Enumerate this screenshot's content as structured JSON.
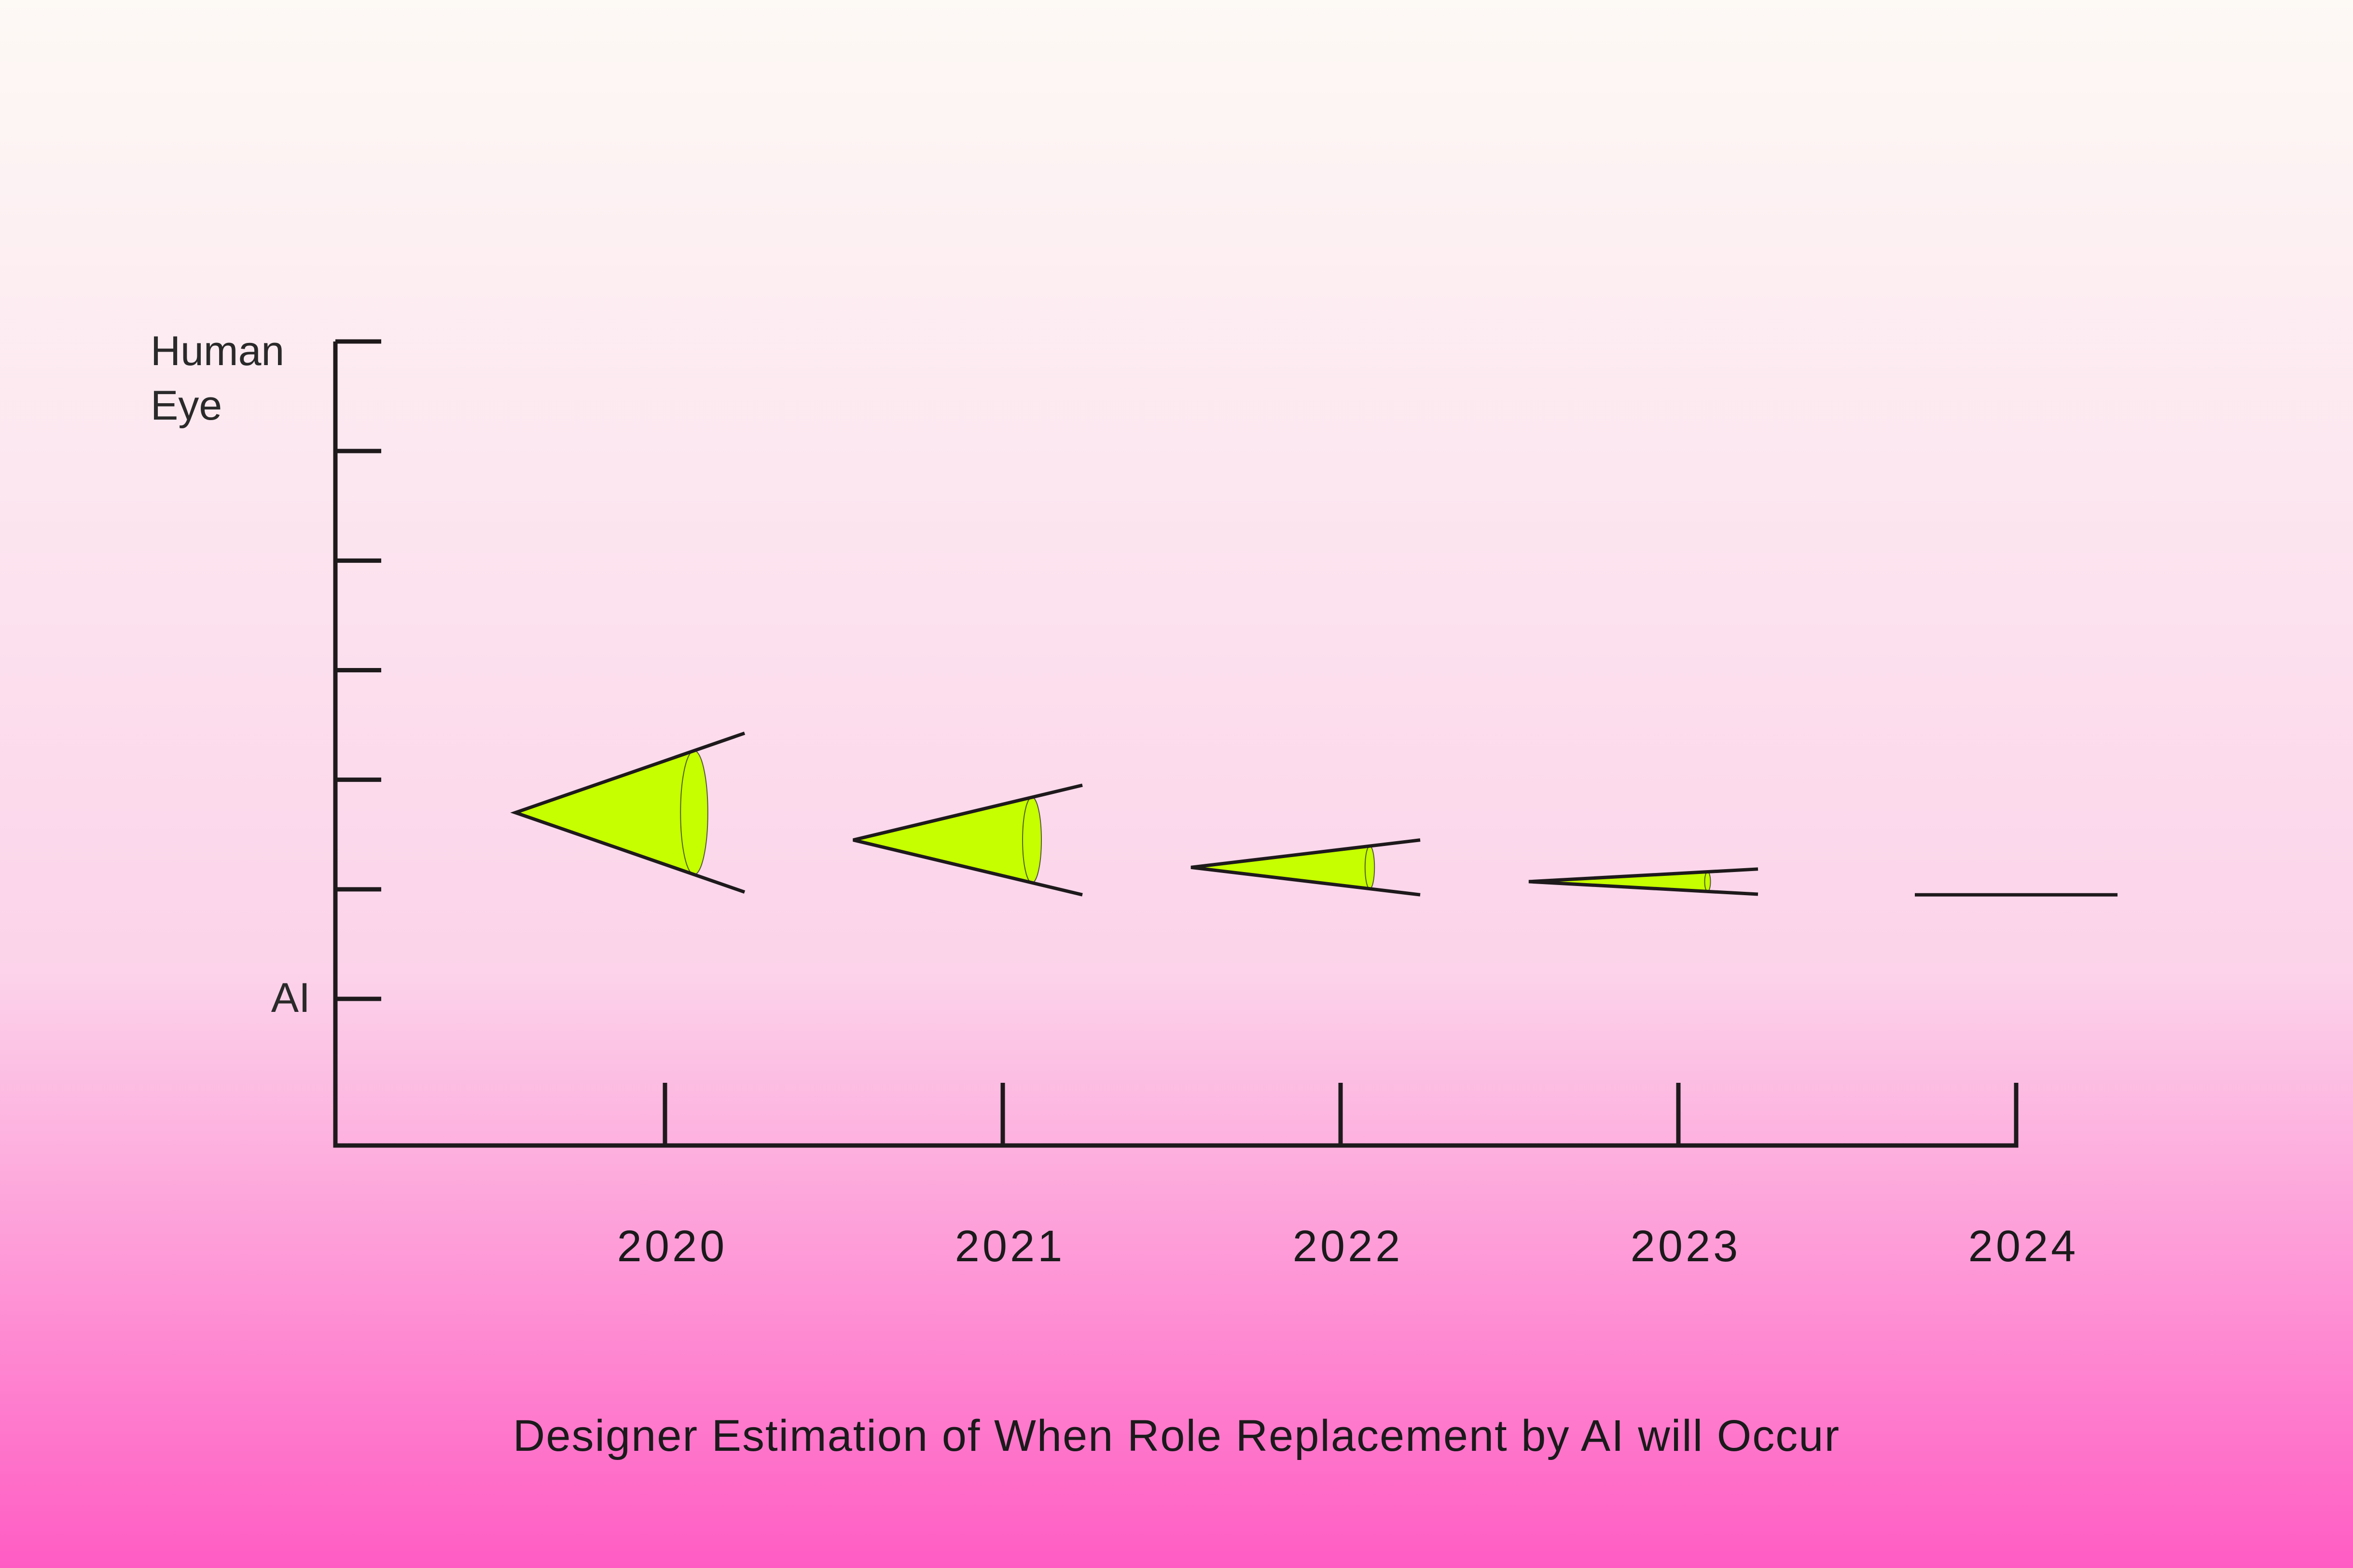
{
  "chart_data": {
    "type": "scatter",
    "title": "Designer Estimation of When Role Replacement by AI will Occur",
    "categories": [
      "2020",
      "2021",
      "2022",
      "2023",
      "2024"
    ],
    "y_axis": {
      "top_label": "Human Eye",
      "bottom_label": "AI",
      "tick_count": 7,
      "range": [
        0,
        6
      ]
    },
    "values": [
      1.7,
      1.45,
      1.2,
      1.07,
      0.95
    ],
    "cone_spread": [
      1.45,
      1.0,
      0.5,
      0.23,
      0.0
    ],
    "grid": false,
    "legend": "none"
  },
  "colors": {
    "background_top": "#fdf9f5",
    "background_mid": "#fcd3ea",
    "background_bottom": "#ff5cc3",
    "mark_fill": "#c6ff00",
    "ink": "#1e1a1c"
  }
}
